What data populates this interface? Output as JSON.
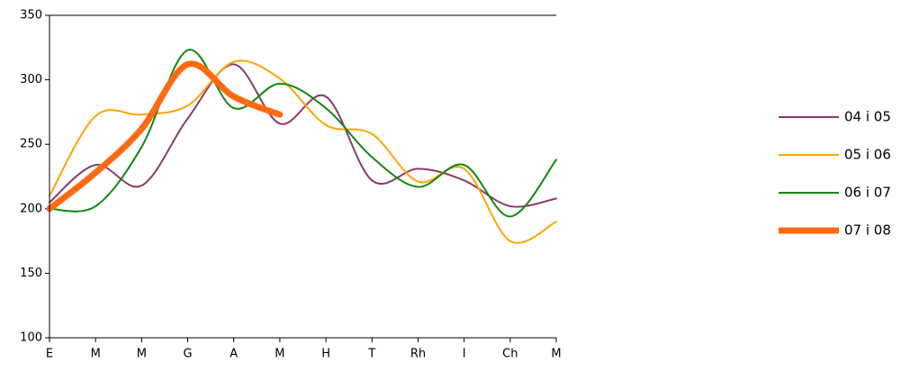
{
  "chart_data": {
    "type": "line",
    "categories": [
      "E",
      "M",
      "M",
      "G",
      "A",
      "M",
      "H",
      "T",
      "Rh",
      "I",
      "Ch",
      "M"
    ],
    "series": [
      {
        "name": "04 i 05",
        "color": "#8b3a6e",
        "width": 2,
        "values": [
          205,
          234,
          218,
          270,
          312,
          266,
          287,
          222,
          231,
          222,
          202,
          208
        ]
      },
      {
        "name": "05 i 06",
        "color": "#ffa500",
        "width": 2,
        "values": [
          210,
          272,
          273,
          280,
          314,
          301,
          265,
          258,
          221,
          231,
          175,
          190
        ]
      },
      {
        "name": "06 i 07",
        "color": "#118811",
        "width": 2,
        "values": [
          200,
          202,
          248,
          323,
          278,
          297,
          278,
          240,
          217,
          234,
          194,
          238
        ]
      },
      {
        "name": "07 i 08",
        "color": "#ff6a13",
        "width": 7,
        "values": [
          200,
          228,
          262,
          312,
          287,
          273,
          null,
          null,
          null,
          null,
          null,
          null
        ]
      }
    ],
    "ylim": [
      100,
      350
    ],
    "yticks": [
      100,
      150,
      200,
      250,
      300,
      350
    ],
    "smooth": true,
    "legend": "right"
  }
}
